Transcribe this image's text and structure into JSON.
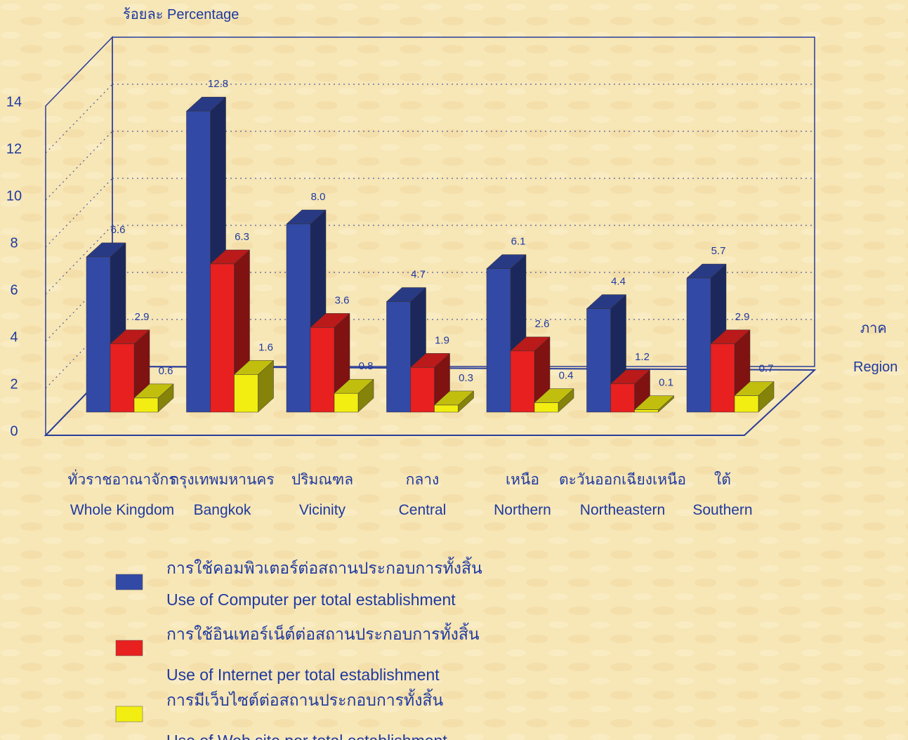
{
  "chart_data": {
    "type": "bar3d",
    "ylabel": "ร้อยละ Percentage",
    "xlabel": "ภาค",
    "xlabel_en": "Region",
    "categories": [
      "ทั่วราชอาณาจักร",
      "กรุงเทพมหานคร",
      "ปริมณฑล",
      "กลาง",
      "เหนือ",
      "ตะวันออกเฉียงเหนือ",
      "ใต้"
    ],
    "categories_en": [
      "Whole Kingdom",
      "Bangkok",
      "Vicinity",
      "Central",
      "Northern",
      "Northeastern",
      "Southern"
    ],
    "series": [
      {
        "name": "การใช้คอมพิวเตอร์ต่อสถานประกอบการทั้งสิ้น",
        "name_en": "Use of Computer per total establishment",
        "color": "#3349a6",
        "values": [
          6.6,
          12.8,
          8.0,
          4.7,
          6.1,
          4.4,
          5.7
        ],
        "value_labels": [
          "6.6",
          "12.8",
          "8.0",
          "4.7",
          "6.1",
          "4.4",
          "5.7"
        ]
      },
      {
        "name": "การใช้อินเทอร์เน็ต์ต่อสถานประกอบการทั้งสิ้น",
        "name_en": "Use of Internet per total establishment",
        "color": "#e82020",
        "values": [
          2.9,
          6.3,
          3.6,
          1.9,
          2.6,
          1.2,
          2.9
        ],
        "value_labels": [
          "2.9",
          "6.3",
          "3.6",
          "1.9",
          "2.6",
          "1.2",
          "2.9"
        ]
      },
      {
        "name": "การมีเว็บไซต์ต่อสถานประกอบการทั้งสิ้น",
        "name_en": "Use of Web site per total establishment",
        "color": "#f2ee12",
        "values": [
          0.6,
          1.6,
          0.8,
          0.3,
          0.4,
          0.1,
          0.7
        ],
        "value_labels": [
          "0.6",
          "1.6",
          "0.8",
          "0.3",
          "0.4",
          "0.1",
          "0.7"
        ]
      }
    ],
    "ylim": [
      0,
      14
    ],
    "yticks": [
      0,
      2,
      4,
      6,
      8,
      10,
      12,
      14
    ],
    "grid": true
  }
}
